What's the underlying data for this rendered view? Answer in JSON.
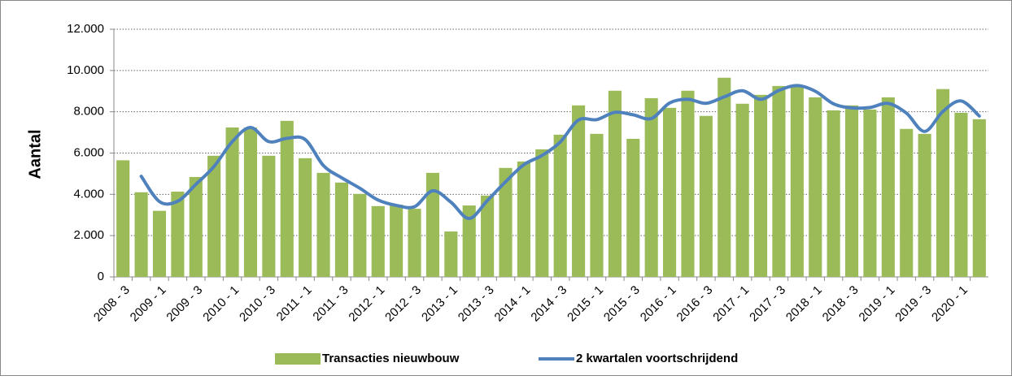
{
  "chart_data": {
    "type": "bar_line",
    "y_label": "Aantal",
    "categories": [
      "2008 - 3",
      null,
      "2009 - 1",
      null,
      "2009 - 3",
      null,
      "2010 - 1",
      null,
      "2010 - 3",
      null,
      "2011 - 1",
      null,
      "2011 - 3",
      null,
      "2012 - 1",
      null,
      "2012 - 3",
      null,
      "2013 - 1",
      null,
      "2013 - 3",
      null,
      "2014 - 1",
      null,
      "2014 - 3",
      null,
      "2015 - 1",
      null,
      "2015 - 3",
      null,
      "2016 - 1",
      null,
      "2016 - 3",
      null,
      "2017 - 1",
      null,
      "2017 - 3",
      null,
      "2018 - 1",
      null,
      "2018 - 3",
      null,
      "2019 - 1",
      null,
      "2019 - 3",
      null,
      "2020 - 1",
      null
    ],
    "series": [
      {
        "name": "Transacties nieuwbouw",
        "type": "bar",
        "color": "#9bbb59",
        "values": [
          5650,
          4100,
          3200,
          4130,
          4840,
          5870,
          7240,
          7240,
          5870,
          7560,
          5750,
          5040,
          4570,
          4020,
          3430,
          3500,
          3300,
          5040,
          2200,
          3460,
          3940,
          5280,
          5590,
          6180,
          6890,
          8310,
          6930,
          9020,
          6690,
          8660,
          8190,
          9020,
          7800,
          9650,
          8390,
          8820,
          9250,
          9290,
          8700,
          8070,
          8310,
          8110,
          8700,
          7170,
          6930,
          9100,
          7950,
          7640
        ]
      },
      {
        "name": "2 kwartalen voortschrijdend",
        "type": "line",
        "color": "#4f81bd",
        "values": [
          null,
          4875,
          3650,
          3665,
          4485,
          5355,
          6555,
          7240,
          6555,
          6715,
          6655,
          5395,
          4805,
          4295,
          3725,
          3465,
          3400,
          4170,
          3620,
          2830,
          3700,
          4610,
          5435,
          5885,
          6535,
          7600,
          7620,
          7975,
          7855,
          7675,
          8425,
          8605,
          8410,
          8725,
          9020,
          8605,
          9035,
          9270,
          8995,
          8385,
          8190,
          8210,
          8405,
          7935,
          7050,
          8015,
          8525,
          7795
        ]
      }
    ],
    "ylim": [
      0,
      12000
    ],
    "yticks": [
      0,
      {
        "value": 2000,
        "label": "2.000"
      },
      {
        "value": 4000,
        "label": "4.000"
      },
      {
        "value": 6000,
        "label": "6.000"
      },
      {
        "value": 8000,
        "label": "8.000"
      },
      {
        "value": 10000,
        "label": "10.000"
      },
      {
        "value": 12000,
        "label": "12.000"
      }
    ],
    "grid": true
  }
}
